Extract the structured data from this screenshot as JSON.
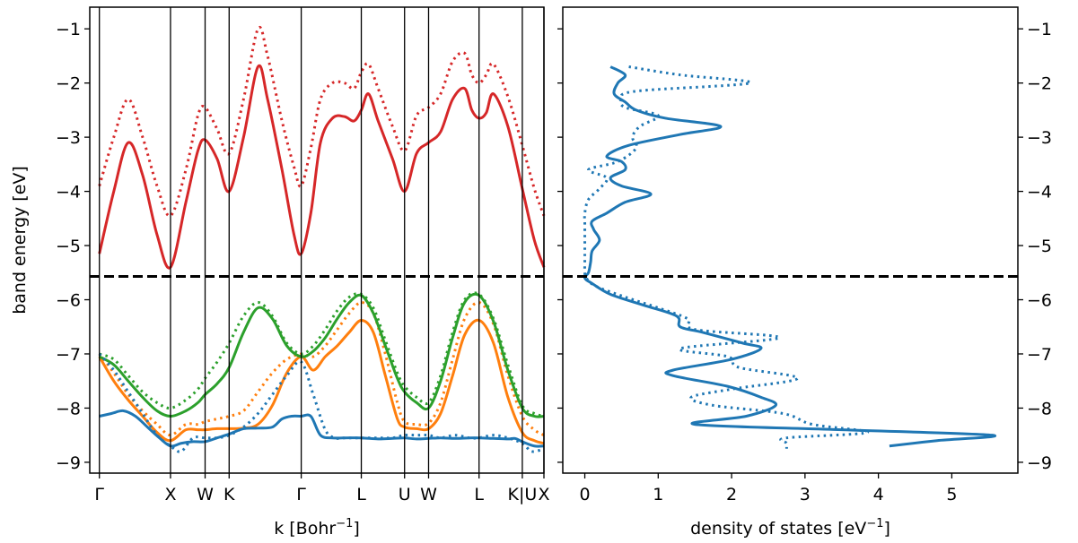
{
  "chart_data": [
    {
      "type": "line",
      "title": "",
      "xlabel": "k [Bohr",
      "xlabel_sup": "−1",
      "xlabel_end": "]",
      "ylabel": "band energy [eV]",
      "ylim": [
        -9.2,
        -0.6
      ],
      "yticks": [
        -9,
        -8,
        -7,
        -6,
        -5,
        -4,
        -3,
        -2,
        -1
      ],
      "ytick_labels": [
        "−9",
        "−8",
        "−7",
        "−6",
        "−5",
        "−4",
        "−3",
        "−2",
        "−1"
      ],
      "xlim": [
        -0.2,
        9.25
      ],
      "kpoints": [
        {
          "label": "Γ",
          "x": 0.0
        },
        {
          "label": "X",
          "x": 1.48
        },
        {
          "label": "W",
          "x": 2.2
        },
        {
          "label": "K",
          "x": 2.7
        },
        {
          "label": "Γ",
          "x": 4.2
        },
        {
          "label": "L",
          "x": 5.45
        },
        {
          "label": "U",
          "x": 6.35
        },
        {
          "label": "W",
          "x": 6.85
        },
        {
          "label": "L",
          "x": 7.9
        },
        {
          "label": "K|U",
          "x": 8.8
        },
        {
          "label": "X",
          "x": 9.25
        }
      ],
      "fermi_level": -5.57,
      "series": [
        {
          "color": "#d62728",
          "style": "solid",
          "x": [
            0,
            0.3,
            0.6,
            0.9,
            1.2,
            1.48,
            1.8,
            2.05,
            2.2,
            2.45,
            2.7,
            3.0,
            3.3,
            3.5,
            3.8,
            4.05,
            4.2,
            4.4,
            4.6,
            4.85,
            5.1,
            5.3,
            5.45,
            5.6,
            5.8,
            6.1,
            6.35,
            6.6,
            6.85,
            7.1,
            7.35,
            7.6,
            7.75,
            7.9,
            8.05,
            8.2,
            8.5,
            8.8,
            9.05,
            9.25
          ],
          "y": [
            -5.15,
            -4.0,
            -3.1,
            -3.7,
            -4.8,
            -5.4,
            -4.2,
            -3.25,
            -3.05,
            -3.4,
            -4.0,
            -3.0,
            -1.7,
            -2.3,
            -3.6,
            -4.8,
            -5.15,
            -4.4,
            -3.1,
            -2.65,
            -2.62,
            -2.7,
            -2.5,
            -2.2,
            -2.7,
            -3.4,
            -4.0,
            -3.3,
            -3.1,
            -2.9,
            -2.3,
            -2.1,
            -2.5,
            -2.65,
            -2.55,
            -2.2,
            -2.8,
            -3.95,
            -4.9,
            -5.4
          ]
        },
        {
          "color": "#d62728",
          "style": "dotted",
          "x": [
            0,
            0.3,
            0.6,
            0.9,
            1.2,
            1.48,
            1.8,
            2.05,
            2.2,
            2.45,
            2.7,
            3.0,
            3.3,
            3.5,
            3.8,
            4.05,
            4.2,
            4.4,
            4.6,
            4.85,
            5.1,
            5.3,
            5.45,
            5.6,
            5.8,
            6.1,
            6.35,
            6.6,
            6.85,
            7.1,
            7.35,
            7.6,
            7.75,
            7.9,
            8.05,
            8.2,
            8.5,
            8.8,
            9.05,
            9.25
          ],
          "y": [
            -3.9,
            -3.0,
            -2.3,
            -3.0,
            -3.9,
            -4.45,
            -3.6,
            -2.6,
            -2.45,
            -2.85,
            -3.3,
            -2.3,
            -1.0,
            -1.5,
            -2.7,
            -3.55,
            -3.9,
            -3.2,
            -2.3,
            -2.0,
            -2.0,
            -2.1,
            -1.8,
            -1.65,
            -2.1,
            -2.8,
            -3.25,
            -2.6,
            -2.45,
            -2.2,
            -1.6,
            -1.45,
            -1.85,
            -2.0,
            -1.85,
            -1.65,
            -2.25,
            -3.15,
            -3.95,
            -4.45
          ]
        },
        {
          "color": "#ff7f0e",
          "style": "solid",
          "x": [
            0,
            0.3,
            0.6,
            0.9,
            1.2,
            1.48,
            1.8,
            2.05,
            2.2,
            2.45,
            2.7,
            3.0,
            3.3,
            3.6,
            3.9,
            4.2,
            4.45,
            4.7,
            4.95,
            5.2,
            5.45,
            5.7,
            5.95,
            6.2,
            6.35,
            6.6,
            6.85,
            7.1,
            7.35,
            7.6,
            7.9,
            8.2,
            8.5,
            8.8,
            9.05,
            9.25
          ],
          "y": [
            -7.05,
            -7.5,
            -7.85,
            -8.15,
            -8.45,
            -8.6,
            -8.4,
            -8.4,
            -8.4,
            -8.38,
            -8.38,
            -8.37,
            -8.3,
            -7.95,
            -7.35,
            -7.05,
            -7.3,
            -7.05,
            -6.85,
            -6.6,
            -6.38,
            -6.6,
            -7.4,
            -8.2,
            -8.35,
            -8.38,
            -8.38,
            -8.1,
            -7.4,
            -6.65,
            -6.38,
            -6.8,
            -7.8,
            -8.45,
            -8.6,
            -8.65
          ]
        },
        {
          "color": "#ff7f0e",
          "style": "dotted",
          "x": [
            0,
            0.3,
            0.6,
            0.9,
            1.2,
            1.48,
            1.8,
            2.05,
            2.2,
            2.45,
            2.7,
            3.0,
            3.3,
            3.6,
            3.9,
            4.2,
            4.45,
            4.7,
            4.95,
            5.2,
            5.45,
            5.7,
            5.95,
            6.2,
            6.35,
            6.6,
            6.85,
            7.1,
            7.35,
            7.6,
            7.9,
            8.2,
            8.5,
            8.8,
            9.05,
            9.25
          ],
          "y": [
            -7.0,
            -7.35,
            -7.75,
            -8.05,
            -8.3,
            -8.5,
            -8.3,
            -8.3,
            -8.25,
            -8.2,
            -8.15,
            -8.05,
            -7.7,
            -7.35,
            -7.1,
            -7.0,
            -7.05,
            -6.85,
            -6.55,
            -6.25,
            -6.05,
            -6.25,
            -7.0,
            -7.9,
            -8.25,
            -8.3,
            -8.28,
            -7.9,
            -7.1,
            -6.35,
            -6.05,
            -6.45,
            -7.4,
            -8.15,
            -8.4,
            -8.5
          ]
        },
        {
          "color": "#2ca02c",
          "style": "solid",
          "x": [
            0,
            0.3,
            0.6,
            0.9,
            1.2,
            1.48,
            1.8,
            2.05,
            2.2,
            2.45,
            2.7,
            3.0,
            3.3,
            3.6,
            3.9,
            4.2,
            4.45,
            4.7,
            4.95,
            5.2,
            5.45,
            5.7,
            5.95,
            6.2,
            6.35,
            6.6,
            6.85,
            7.1,
            7.35,
            7.6,
            7.9,
            8.2,
            8.5,
            8.8,
            9.05,
            9.25
          ],
          "y": [
            -7.05,
            -7.2,
            -7.5,
            -7.8,
            -8.05,
            -8.15,
            -8.05,
            -7.9,
            -7.75,
            -7.55,
            -7.25,
            -6.6,
            -6.15,
            -6.35,
            -6.85,
            -7.05,
            -6.95,
            -6.7,
            -6.35,
            -6.05,
            -5.92,
            -6.25,
            -6.85,
            -7.45,
            -7.7,
            -7.9,
            -8.0,
            -7.5,
            -6.7,
            -6.05,
            -5.92,
            -6.4,
            -7.3,
            -8.0,
            -8.15,
            -8.15
          ]
        },
        {
          "color": "#2ca02c",
          "style": "dotted",
          "x": [
            0,
            0.3,
            0.6,
            0.9,
            1.2,
            1.48,
            1.8,
            2.05,
            2.2,
            2.45,
            2.7,
            3.0,
            3.3,
            3.6,
            3.9,
            4.2,
            4.45,
            4.7,
            4.95,
            5.2,
            5.45,
            5.7,
            5.95,
            6.2,
            6.35,
            6.6,
            6.85,
            7.1,
            7.35,
            7.6,
            7.9,
            8.2,
            8.5,
            8.8,
            9.05,
            9.25
          ],
          "y": [
            -7.0,
            -7.1,
            -7.4,
            -7.7,
            -7.9,
            -8.0,
            -7.85,
            -7.65,
            -7.45,
            -7.15,
            -6.8,
            -6.3,
            -6.05,
            -6.3,
            -6.8,
            -7.0,
            -6.85,
            -6.55,
            -6.2,
            -5.95,
            -5.9,
            -6.15,
            -6.75,
            -7.35,
            -7.6,
            -7.8,
            -7.9,
            -7.4,
            -6.6,
            -6.0,
            -5.9,
            -6.35,
            -7.2,
            -7.95,
            -8.1,
            -8.15
          ]
        },
        {
          "color": "#1f77b4",
          "style": "solid",
          "x": [
            0,
            0.25,
            0.5,
            0.75,
            1.0,
            1.25,
            1.48,
            1.7,
            1.95,
            2.2,
            2.45,
            2.7,
            3.0,
            3.3,
            3.6,
            3.8,
            4.0,
            4.2,
            4.4,
            4.6,
            4.85,
            5.1,
            5.45,
            5.8,
            6.1,
            6.35,
            6.6,
            6.85,
            7.1,
            7.4,
            7.7,
            7.9,
            8.2,
            8.5,
            8.65,
            8.8,
            9.05,
            9.25
          ],
          "y": [
            -8.15,
            -8.1,
            -8.05,
            -8.15,
            -8.35,
            -8.55,
            -8.7,
            -8.65,
            -8.62,
            -8.62,
            -8.55,
            -8.48,
            -8.38,
            -8.37,
            -8.35,
            -8.2,
            -8.15,
            -8.15,
            -8.15,
            -8.5,
            -8.55,
            -8.55,
            -8.55,
            -8.57,
            -8.56,
            -8.55,
            -8.57,
            -8.56,
            -8.55,
            -8.56,
            -8.55,
            -8.55,
            -8.56,
            -8.57,
            -8.56,
            -8.62,
            -8.7,
            -8.7
          ]
        },
        {
          "color": "#1f77b4",
          "style": "dotted",
          "x": [
            0,
            0.3,
            0.6,
            0.9,
            1.2,
            1.48,
            1.7,
            1.95,
            2.2,
            2.45,
            2.7,
            3.0,
            3.3,
            3.6,
            3.9,
            4.2,
            4.45,
            4.7,
            4.9,
            5.1,
            5.45,
            5.8,
            6.1,
            6.35,
            6.6,
            6.85,
            7.1,
            7.4,
            7.7,
            7.9,
            8.2,
            8.5,
            8.8,
            9.0,
            9.25
          ],
          "y": [
            -7.0,
            -7.3,
            -7.7,
            -8.1,
            -8.5,
            -8.7,
            -8.8,
            -8.55,
            -8.55,
            -8.55,
            -8.5,
            -8.35,
            -8.1,
            -7.75,
            -7.4,
            -7.15,
            -7.75,
            -8.4,
            -8.55,
            -8.55,
            -8.55,
            -8.55,
            -8.55,
            -8.5,
            -8.5,
            -8.5,
            -8.55,
            -8.5,
            -8.55,
            -8.55,
            -8.5,
            -8.55,
            -8.65,
            -8.8,
            -8.75
          ]
        }
      ]
    },
    {
      "type": "line",
      "title": "",
      "xlabel": "density of states [eV",
      "xlabel_sup": "−1",
      "xlabel_end": "]",
      "ylabel": "",
      "xlim": [
        -0.3,
        5.9
      ],
      "ylim": [
        -9.2,
        -0.6
      ],
      "xticks": [
        0,
        1,
        2,
        3,
        4,
        5
      ],
      "xtick_labels": [
        "0",
        "1",
        "2",
        "3",
        "4",
        "5"
      ],
      "yticks": [
        -9,
        -8,
        -7,
        -6,
        -5,
        -4,
        -3,
        -2,
        -1
      ],
      "ytick_labels": [
        "−9",
        "−8",
        "−7",
        "−6",
        "−5",
        "−4",
        "−3",
        "−2",
        "−1"
      ],
      "fermi_level": -5.57,
      "series": [
        {
          "color": "#1f77b4",
          "style": "solid",
          "y": [
            -1.7,
            -1.85,
            -2.0,
            -2.2,
            -2.35,
            -2.5,
            -2.65,
            -2.8,
            -2.95,
            -3.15,
            -3.35,
            -3.45,
            -3.6,
            -3.75,
            -3.9,
            -4.05,
            -4.2,
            -4.4,
            -4.55,
            -4.7,
            -4.9,
            -5.1,
            -5.3,
            -5.5,
            -5.6,
            -5.7,
            -5.9,
            -6.1,
            -6.3,
            -6.5,
            -6.6,
            -6.8,
            -6.9,
            -7.1,
            -7.3,
            -7.4,
            -7.6,
            -7.8,
            -7.95,
            -8.15,
            -8.3,
            -8.4,
            -8.5,
            -8.6,
            -8.7
          ],
          "x": [
            0.35,
            0.55,
            0.45,
            0.4,
            0.55,
            0.7,
            1.1,
            1.85,
            1.3,
            0.6,
            0.3,
            0.5,
            0.55,
            0.35,
            0.5,
            0.9,
            0.55,
            0.3,
            0.1,
            0.12,
            0.2,
            0.1,
            0.08,
            0.05,
            0.0,
            0.1,
            0.35,
            0.8,
            1.25,
            1.3,
            1.6,
            2.15,
            2.4,
            2.0,
            1.2,
            1.2,
            1.95,
            2.4,
            2.6,
            2.2,
            1.5,
            3.5,
            5.55,
            4.8,
            4.15
          ]
        },
        {
          "color": "#1f77b4",
          "style": "dotted",
          "y": [
            -1.7,
            -1.85,
            -2.0,
            -2.15,
            -2.3,
            -2.45,
            -2.6,
            -2.8,
            -3.0,
            -3.2,
            -3.45,
            -3.6,
            -3.75,
            -3.95,
            -4.15,
            -4.4,
            -4.6,
            -4.85,
            -5.1,
            -5.3,
            -5.5,
            -5.6,
            -5.75,
            -5.95,
            -6.15,
            -6.35,
            -6.55,
            -6.7,
            -6.9,
            -7.05,
            -7.25,
            -7.45,
            -7.65,
            -7.8,
            -7.95,
            -8.1,
            -8.3,
            -8.45,
            -8.55,
            -8.65,
            -8.75
          ],
          "x": [
            0.6,
            1.3,
            2.25,
            0.7,
            0.5,
            0.55,
            1.0,
            0.75,
            0.65,
            0.7,
            0.45,
            0.05,
            0.3,
            0.2,
            0.05,
            0.0,
            0.0,
            0.0,
            0.0,
            0.0,
            0.0,
            0.02,
            0.15,
            0.55,
            1.0,
            1.4,
            1.5,
            2.65,
            1.3,
            1.95,
            2.1,
            2.9,
            2.0,
            1.45,
            1.75,
            2.7,
            3.1,
            3.85,
            2.75,
            2.75,
            2.75
          ]
        }
      ]
    }
  ]
}
